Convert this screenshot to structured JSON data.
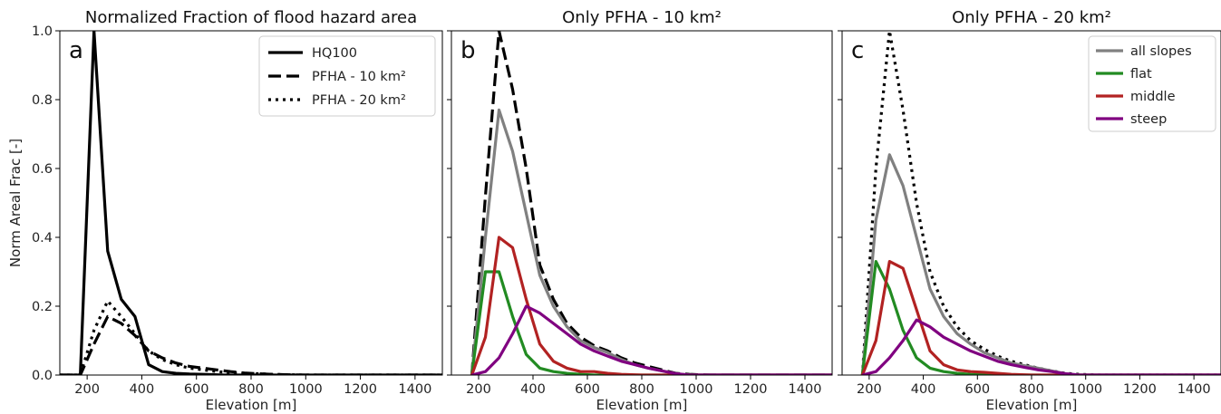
{
  "chart_data": [
    {
      "type": "line",
      "panel": "a",
      "title": "Normalized Fraction of flood hazard area",
      "xlabel": "Elevation [m]",
      "ylabel": "Norm Areal Frac [-]",
      "xlim": [
        100,
        1500
      ],
      "ylim": [
        0,
        1.0
      ],
      "xticks": [
        "200",
        "400",
        "600",
        "800",
        "1000",
        "1200",
        "1400"
      ],
      "yticks": [
        "0.0",
        "0.2",
        "0.4",
        "0.6",
        "0.8",
        "1.0"
      ],
      "legend_position": "top-right",
      "series": [
        {
          "name": "HQ100",
          "color": "#000000",
          "style": "solid",
          "x": [
            100,
            175,
            225,
            275,
            325,
            375,
            425,
            475,
            525,
            575,
            625,
            700,
            800,
            1000,
            1500
          ],
          "y": [
            0.0,
            0.0,
            1.0,
            0.36,
            0.22,
            0.17,
            0.03,
            0.01,
            0.005,
            0.003,
            0.002,
            0.0,
            0.0,
            0.0,
            0.0
          ]
        },
        {
          "name": "PFHA - 10 km²",
          "color": "#000000",
          "style": "dashed",
          "x": [
            100,
            175,
            225,
            275,
            325,
            375,
            425,
            475,
            525,
            575,
            625,
            675,
            725,
            775,
            825,
            875,
            925,
            1000,
            1100,
            1500
          ],
          "y": [
            0.0,
            0.0,
            0.09,
            0.17,
            0.15,
            0.115,
            0.07,
            0.05,
            0.035,
            0.025,
            0.02,
            0.015,
            0.01,
            0.006,
            0.004,
            0.002,
            0.001,
            0.0,
            0.0,
            0.0
          ]
        },
        {
          "name": "PFHA - 20 km²",
          "color": "#000000",
          "style": "dotted",
          "x": [
            100,
            175,
            225,
            275,
            325,
            375,
            425,
            475,
            525,
            575,
            625,
            675,
            725,
            775,
            825,
            875,
            925,
            1000,
            1100,
            1500
          ],
          "y": [
            0.0,
            0.0,
            0.13,
            0.215,
            0.17,
            0.12,
            0.07,
            0.045,
            0.03,
            0.02,
            0.015,
            0.01,
            0.007,
            0.005,
            0.004,
            0.002,
            0.001,
            0.0,
            0.0,
            0.0
          ]
        }
      ]
    },
    {
      "type": "line",
      "panel": "b",
      "title": "Only PFHA - 10 km²",
      "xlabel": "Elevation [m]",
      "ylabel": "",
      "xlim": [
        100,
        1500
      ],
      "ylim": [
        0,
        1.0
      ],
      "xticks": [
        "200",
        "400",
        "600",
        "800",
        "1000",
        "1200",
        "1400"
      ],
      "series": [
        {
          "name": "PFHA - 10 km²",
          "color": "#000000",
          "style": "dashed",
          "x": [
            175,
            225,
            275,
            325,
            375,
            425,
            475,
            525,
            575,
            625,
            675,
            725,
            775,
            825,
            875,
            925,
            975,
            1050,
            1500
          ],
          "y": [
            0.0,
            0.52,
            1.0,
            0.83,
            0.6,
            0.32,
            0.22,
            0.15,
            0.11,
            0.085,
            0.07,
            0.05,
            0.035,
            0.025,
            0.015,
            0.005,
            0.002,
            0.0,
            0.0
          ]
        },
        {
          "name": "all slopes",
          "color": "#808080",
          "style": "solid",
          "x": [
            175,
            225,
            275,
            325,
            375,
            425,
            475,
            525,
            575,
            625,
            675,
            725,
            775,
            825,
            875,
            925,
            975,
            1050,
            1500
          ],
          "y": [
            0.0,
            0.4,
            0.77,
            0.65,
            0.47,
            0.29,
            0.2,
            0.14,
            0.1,
            0.08,
            0.065,
            0.045,
            0.03,
            0.02,
            0.012,
            0.004,
            0.0,
            0.0,
            0.0
          ]
        },
        {
          "name": "flat",
          "color": "#228b22",
          "style": "solid",
          "x": [
            175,
            225,
            275,
            325,
            375,
            425,
            475,
            525,
            575,
            625,
            700,
            1500
          ],
          "y": [
            0.0,
            0.3,
            0.3,
            0.17,
            0.06,
            0.02,
            0.01,
            0.005,
            0.002,
            0.0,
            0.0,
            0.0
          ]
        },
        {
          "name": "middle",
          "color": "#b22222",
          "style": "solid",
          "x": [
            175,
            225,
            275,
            325,
            375,
            425,
            475,
            525,
            575,
            625,
            675,
            725,
            800,
            1500
          ],
          "y": [
            0.0,
            0.11,
            0.4,
            0.37,
            0.22,
            0.09,
            0.04,
            0.02,
            0.01,
            0.01,
            0.005,
            0.002,
            0.0,
            0.0
          ]
        },
        {
          "name": "steep",
          "color": "#800080",
          "style": "solid",
          "x": [
            175,
            225,
            275,
            325,
            375,
            425,
            475,
            525,
            575,
            625,
            675,
            725,
            775,
            825,
            875,
            925,
            975,
            1050,
            1500
          ],
          "y": [
            0.0,
            0.01,
            0.05,
            0.12,
            0.2,
            0.18,
            0.15,
            0.12,
            0.09,
            0.07,
            0.055,
            0.04,
            0.03,
            0.02,
            0.012,
            0.004,
            0.0,
            0.0,
            0.0
          ]
        }
      ]
    },
    {
      "type": "line",
      "panel": "c",
      "title": "Only PFHA - 20 km²",
      "xlabel": "Elevation [m]",
      "ylabel": "",
      "xlim": [
        100,
        1500
      ],
      "ylim": [
        0,
        1.0
      ],
      "xticks": [
        "200",
        "400",
        "600",
        "800",
        "1000",
        "1200",
        "1400"
      ],
      "legend_position": "top-right",
      "series": [
        {
          "name": "PFHA - 20 km²",
          "color": "#000000",
          "style": "dotted",
          "x": [
            175,
            225,
            275,
            325,
            375,
            425,
            475,
            525,
            575,
            625,
            675,
            725,
            775,
            825,
            875,
            925,
            975,
            1050,
            1500
          ],
          "y": [
            0.0,
            0.6,
            1.0,
            0.77,
            0.5,
            0.3,
            0.2,
            0.14,
            0.1,
            0.075,
            0.055,
            0.04,
            0.03,
            0.02,
            0.012,
            0.005,
            0.002,
            0.0,
            0.0
          ]
        },
        {
          "name": "all slopes",
          "color": "#808080",
          "style": "solid",
          "x": [
            175,
            225,
            275,
            325,
            375,
            425,
            475,
            525,
            575,
            625,
            675,
            725,
            775,
            825,
            875,
            925,
            975,
            1050,
            1500
          ],
          "y": [
            0.0,
            0.45,
            0.64,
            0.55,
            0.4,
            0.25,
            0.17,
            0.12,
            0.09,
            0.065,
            0.05,
            0.035,
            0.027,
            0.02,
            0.012,
            0.004,
            0.0,
            0.0,
            0.0
          ]
        },
        {
          "name": "flat",
          "color": "#228b22",
          "style": "solid",
          "x": [
            175,
            225,
            275,
            325,
            375,
            425,
            475,
            525,
            575,
            650,
            1500
          ],
          "y": [
            0.0,
            0.33,
            0.25,
            0.13,
            0.05,
            0.02,
            0.01,
            0.005,
            0.002,
            0.0,
            0.0
          ]
        },
        {
          "name": "middle",
          "color": "#b22222",
          "style": "solid",
          "x": [
            175,
            225,
            275,
            325,
            375,
            425,
            475,
            525,
            575,
            625,
            675,
            725,
            800,
            1500
          ],
          "y": [
            0.0,
            0.1,
            0.33,
            0.31,
            0.19,
            0.07,
            0.03,
            0.015,
            0.01,
            0.008,
            0.005,
            0.002,
            0.0,
            0.0
          ]
        },
        {
          "name": "steep",
          "color": "#800080",
          "style": "solid",
          "x": [
            175,
            225,
            275,
            325,
            375,
            425,
            475,
            525,
            575,
            625,
            675,
            725,
            775,
            825,
            875,
            925,
            975,
            1050,
            1500
          ],
          "y": [
            0.0,
            0.01,
            0.05,
            0.1,
            0.16,
            0.14,
            0.11,
            0.09,
            0.07,
            0.055,
            0.04,
            0.03,
            0.022,
            0.015,
            0.01,
            0.004,
            0.0,
            0.0,
            0.0
          ]
        }
      ]
    }
  ],
  "legend_a": [
    {
      "label": "HQ100",
      "style": "solid"
    },
    {
      "label": "PFHA - 10 km²",
      "style": "dashed"
    },
    {
      "label": "PFHA - 20 km²",
      "style": "dotted"
    }
  ],
  "legend_c": [
    {
      "label": "all slopes",
      "color": "#808080"
    },
    {
      "label": "flat",
      "color": "#228b22"
    },
    {
      "label": "middle",
      "color": "#b22222"
    },
    {
      "label": "steep",
      "color": "#800080"
    }
  ]
}
